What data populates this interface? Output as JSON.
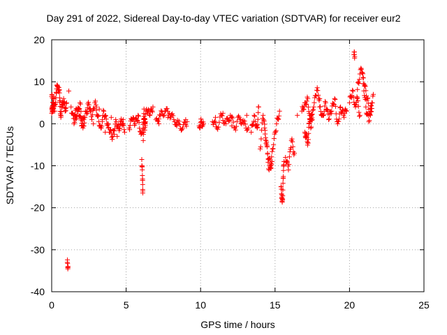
{
  "chart_data": {
    "type": "scatter",
    "title": "Day 291 of 2022, Sidereal Day-to-day VTEC variation (SDTVAR) for receiver eur2",
    "xlabel": "GPS time / hours",
    "ylabel": "SDTVAR / TECUs",
    "xlim": [
      0,
      25
    ],
    "ylim": [
      -40,
      20
    ],
    "xticks": [
      0,
      5,
      10,
      15,
      20,
      25
    ],
    "yticks": [
      -40,
      -30,
      -20,
      -10,
      0,
      10,
      20
    ],
    "grid": true,
    "marker": "+",
    "color": "#ff0000",
    "series": [
      {
        "name": "SDTVAR",
        "segments": [
          {
            "x": [
              0.0,
              0.1,
              0.2,
              0.3,
              0.4,
              0.5,
              0.55,
              0.6,
              0.7,
              0.8,
              0.9,
              1.0
            ],
            "y": [
              6.5,
              5.0,
              3.0,
              7.5,
              9.0,
              8.0,
              5.5,
              2.0,
              4.0,
              6.0,
              3.0,
              5.0
            ]
          },
          {
            "x": [
              0.0,
              0.05,
              0.1,
              0.15
            ],
            "y": [
              2.5,
              4.0,
              3.5,
              6.0
            ]
          },
          {
            "x": [
              1.05,
              1.1,
              1.15
            ],
            "y": [
              -33.0,
              -34.0,
              7.8
            ]
          },
          {
            "x": [
              1.3,
              1.5,
              1.7,
              1.9,
              2.1,
              2.3,
              2.5,
              2.7,
              2.9,
              3.1,
              3.3,
              3.5,
              3.7,
              3.9,
              4.1,
              4.3,
              4.5,
              4.7,
              4.9
            ],
            "y": [
              4.0,
              0.0,
              2.0,
              5.0,
              -1.0,
              3.0,
              4.5,
              1.0,
              5.0,
              2.0,
              -1.0,
              3.0,
              0.0,
              -2.0,
              -3.0,
              1.0,
              -1.0,
              0.5,
              -2.0
            ]
          },
          {
            "x": [
              1.5,
              1.8,
              2.0,
              2.2,
              2.6,
              3.0,
              3.4,
              3.8,
              4.2,
              4.6
            ],
            "y": [
              2.0,
              3.5,
              -0.5,
              1.5,
              3.0,
              4.0,
              1.0,
              -1.0,
              -2.5,
              0.0
            ]
          },
          {
            "x": [
              1.6,
              2.4,
              2.8,
              3.2,
              3.6,
              4.0,
              4.4,
              4.8
            ],
            "y": [
              1.0,
              2.5,
              0.0,
              3.5,
              -2.0,
              1.5,
              -3.0,
              1.0
            ]
          },
          {
            "x": [
              5.2,
              5.4,
              5.6,
              5.8,
              6.0,
              6.2,
              6.4,
              6.6,
              6.8
            ],
            "y": [
              -1.0,
              1.0,
              0.0,
              2.0,
              -2.5,
              1.0,
              3.0,
              2.0,
              4.0
            ]
          },
          {
            "x": [
              6.05,
              6.1,
              6.12,
              6.15,
              6.2,
              6.25,
              6.3
            ],
            "y": [
              -8.5,
              -13.5,
              -16.0,
              -4.0,
              3.5,
              -1.5,
              0.5
            ]
          },
          {
            "x": [
              7.0,
              7.3,
              7.6,
              7.9,
              8.2,
              8.5,
              8.8,
              9.1
            ],
            "y": [
              1.0,
              2.0,
              3.0,
              2.5,
              1.0,
              0.0,
              -1.0,
              0.5
            ]
          },
          {
            "x": [
              7.2,
              7.8,
              8.4,
              9.0
            ],
            "y": [
              0.0,
              1.5,
              -0.5,
              1.0
            ]
          },
          {
            "x": [
              9.9,
              10.05,
              10.2
            ],
            "y": [
              -0.5,
              0.5,
              0.0
            ]
          },
          {
            "x": [
              10.8,
              11.1,
              11.4,
              11.7,
              12.0,
              12.3,
              12.6,
              12.9,
              13.2
            ],
            "y": [
              0.5,
              -1.0,
              2.0,
              0.0,
              2.0,
              -1.0,
              1.5,
              0.0,
              -1.0
            ]
          },
          {
            "x": [
              11.0,
              11.5,
              12.1,
              12.7,
              13.1
            ],
            "y": [
              1.5,
              2.5,
              -0.5,
              1.0,
              2.0
            ]
          },
          {
            "x": [
              13.4,
              13.6,
              13.8,
              13.9,
              14.0,
              14.2,
              14.4,
              14.6,
              14.8
            ],
            "y": [
              -2.0,
              2.0,
              -1.0,
              4.0,
              -6.0,
              2.0,
              -4.0,
              -11.0,
              -9.0
            ]
          },
          {
            "x": [
              14.3,
              14.5,
              14.7,
              14.9,
              15.1,
              15.3
            ],
            "y": [
              -1.0,
              -7.0,
              -10.0,
              -5.0,
              0.0,
              3.0
            ]
          },
          {
            "x": [
              15.4,
              15.45,
              15.5,
              15.55,
              15.6
            ],
            "y": [
              -15.0,
              -17.5,
              -18.0,
              -13.0,
              -9.0
            ]
          },
          {
            "x": [
              15.7,
              15.9,
              16.1,
              16.3,
              16.5
            ],
            "y": [
              -8.0,
              -11.0,
              -4.0,
              -7.0,
              2.0
            ]
          },
          {
            "x": [
              16.8,
              17.0,
              17.2,
              17.4,
              17.6,
              17.8,
              18.0
            ],
            "y": [
              3.0,
              5.0,
              6.0,
              -1.0,
              4.0,
              8.0,
              6.0
            ]
          },
          {
            "x": [
              17.0,
              17.1,
              17.2,
              17.3,
              17.4,
              17.5
            ],
            "y": [
              -2.0,
              -3.0,
              -4.5,
              0.0,
              2.0,
              1.0
            ]
          },
          {
            "x": [
              18.0,
              18.2,
              18.4,
              18.6,
              18.8,
              19.0,
              19.2,
              19.4,
              19.6,
              19.8
            ],
            "y": [
              4.0,
              2.0,
              5.0,
              1.0,
              3.0,
              6.0,
              0.0,
              4.0,
              2.0,
              3.0
            ]
          },
          {
            "x": [
              20.0,
              20.2,
              20.4,
              20.6,
              20.8,
              21.0,
              21.2,
              21.4,
              21.6
            ],
            "y": [
              5.0,
              8.0,
              4.0,
              10.0,
              13.0,
              9.0,
              6.0,
              2.0,
              7.0
            ]
          },
          {
            "x": [
              20.3,
              20.35,
              20.5,
              20.7,
              20.9,
              21.1,
              21.3,
              21.5
            ],
            "y": [
              16.5,
              16.0,
              6.0,
              2.0,
              11.0,
              4.0,
              0.5,
              5.0
            ]
          }
        ]
      }
    ]
  }
}
